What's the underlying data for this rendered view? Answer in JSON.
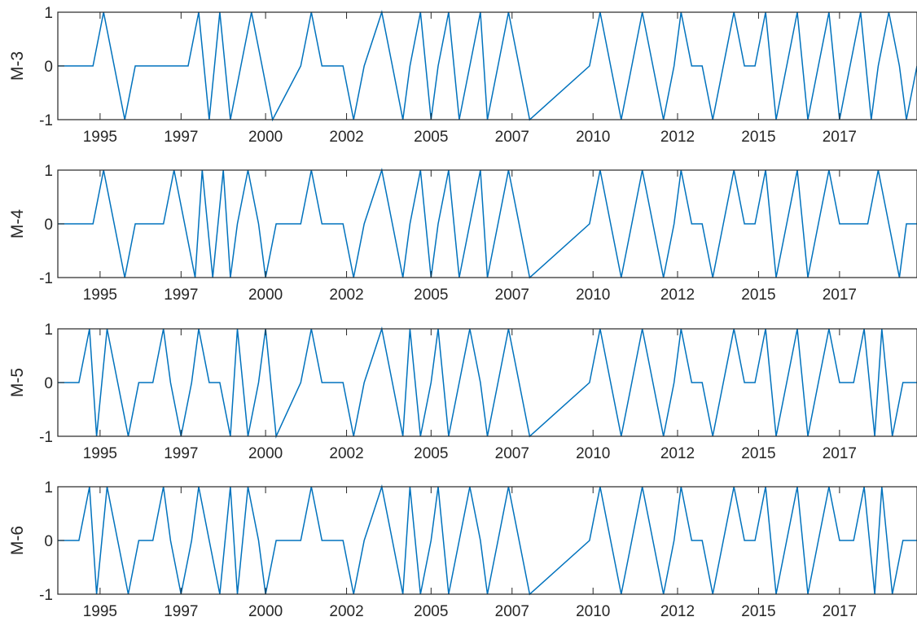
{
  "chart_data": [
    {
      "type": "line",
      "ylabel": "M-3",
      "ylim": [
        -1,
        1
      ],
      "yticks": [
        "-1",
        "0",
        "1"
      ],
      "xlim": [
        1994.0,
        2018.4
      ],
      "xtick_values": [
        1995.2,
        1997.5,
        1999.9,
        2002.2,
        2004.6,
        2006.9,
        2009.2,
        2011.6,
        2013.9,
        2016.2
      ],
      "xtick_labels": [
        "1995",
        "1997",
        "2000",
        "2002",
        "2005",
        "2007",
        "2010",
        "2012",
        "2015",
        "2017"
      ],
      "grid": false,
      "series": [
        {
          "color": "#0072bd",
          "x": [
            1994.0,
            1995.0,
            1995.3,
            1995.6,
            1995.9,
            1996.2,
            1997.7,
            1998.0,
            1998.3,
            1998.6,
            1998.9,
            1999.2,
            1999.5,
            1999.8,
            2000.1,
            2000.9,
            2001.2,
            2001.5,
            2002.1,
            2002.4,
            2002.7,
            2003.2,
            2003.5,
            2003.8,
            2004.0,
            2004.3,
            2004.6,
            2004.8,
            2005.1,
            2005.4,
            2005.7,
            2006.0,
            2006.2,
            2006.5,
            2006.8,
            2007.1,
            2007.4,
            2009.1,
            2009.4,
            2009.7,
            2010.0,
            2010.3,
            2010.6,
            2010.9,
            2011.2,
            2011.5,
            2011.7,
            2012.0,
            2012.3,
            2012.6,
            2012.9,
            2013.2,
            2013.5,
            2013.8,
            2014.1,
            2014.4,
            2014.7,
            2015.0,
            2015.3,
            2015.6,
            2015.9,
            2016.2,
            2016.5,
            2016.8,
            2017.1,
            2017.3,
            2017.6,
            2017.9,
            2018.1,
            2018.4
          ],
          "y": [
            0,
            0,
            1,
            0,
            -1,
            0,
            0,
            1,
            -1,
            1,
            -1,
            0,
            1,
            0,
            -1,
            0,
            1,
            0,
            0,
            -1,
            0,
            1,
            0,
            -1,
            0,
            1,
            -1,
            0,
            1,
            -1,
            0,
            1,
            -1,
            0,
            1,
            0,
            -1,
            0,
            1,
            0,
            -1,
            0,
            1,
            0,
            -1,
            0,
            1,
            0,
            0,
            -1,
            0,
            1,
            0,
            0,
            1,
            -1,
            0,
            1,
            -1,
            0,
            1,
            -1,
            0,
            1,
            -1,
            0,
            1,
            0,
            -1,
            0
          ]
        }
      ]
    },
    {
      "type": "line",
      "ylabel": "M-4",
      "ylim": [
        -1,
        1
      ],
      "yticks": [
        "-1",
        "0",
        "1"
      ],
      "xlim": [
        1994.0,
        2018.4
      ],
      "xtick_values": [
        1995.2,
        1997.5,
        1999.9,
        2002.2,
        2004.6,
        2006.9,
        2009.2,
        2011.6,
        2013.9,
        2016.2
      ],
      "xtick_labels": [
        "1995",
        "1997",
        "2000",
        "2002",
        "2005",
        "2007",
        "2010",
        "2012",
        "2015",
        "2017"
      ],
      "grid": false,
      "series": [
        {
          "color": "#0072bd",
          "x": [
            1994.0,
            1995.0,
            1995.3,
            1995.6,
            1995.9,
            1996.2,
            1997.0,
            1997.3,
            1997.6,
            1997.9,
            1998.1,
            1998.4,
            1998.7,
            1998.9,
            1999.1,
            1999.4,
            1999.7,
            1999.9,
            2000.2,
            2000.9,
            2001.2,
            2001.5,
            2002.1,
            2002.4,
            2002.7,
            2003.2,
            2003.5,
            2003.8,
            2004.0,
            2004.3,
            2004.6,
            2004.8,
            2005.1,
            2005.4,
            2005.7,
            2006.0,
            2006.2,
            2006.5,
            2006.8,
            2007.1,
            2007.4,
            2009.1,
            2009.4,
            2009.7,
            2010.0,
            2010.3,
            2010.6,
            2010.9,
            2011.2,
            2011.5,
            2011.7,
            2012.0,
            2012.3,
            2012.6,
            2012.9,
            2013.2,
            2013.5,
            2013.8,
            2014.1,
            2014.4,
            2014.7,
            2015.0,
            2015.3,
            2015.6,
            2015.9,
            2016.2,
            2017.0,
            2017.3,
            2017.6,
            2017.9,
            2018.1,
            2018.4
          ],
          "y": [
            0,
            0,
            1,
            0,
            -1,
            0,
            0,
            1,
            0,
            -1,
            1,
            -1,
            1,
            -1,
            0,
            1,
            0,
            -1,
            0,
            0,
            1,
            0,
            0,
            -1,
            0,
            1,
            0,
            -1,
            0,
            1,
            -1,
            0,
            1,
            -1,
            0,
            1,
            -1,
            0,
            1,
            0,
            -1,
            0,
            1,
            0,
            -1,
            0,
            1,
            0,
            -1,
            0,
            1,
            0,
            0,
            -1,
            0,
            1,
            0,
            0,
            1,
            -1,
            0,
            1,
            -1,
            0,
            1,
            0,
            0,
            1,
            0,
            -1,
            0,
            0
          ]
        }
      ]
    },
    {
      "type": "line",
      "ylabel": "M-5",
      "ylim": [
        -1,
        1
      ],
      "yticks": [
        "-1",
        "0",
        "1"
      ],
      "xlim": [
        1994.0,
        2018.4
      ],
      "xtick_values": [
        1995.2,
        1997.5,
        1999.9,
        2002.2,
        2004.6,
        2006.9,
        2009.2,
        2011.6,
        2013.9,
        2016.2
      ],
      "xtick_labels": [
        "1995",
        "1997",
        "2000",
        "2002",
        "2005",
        "2007",
        "2010",
        "2012",
        "2015",
        "2017"
      ],
      "grid": false,
      "series": [
        {
          "color": "#0072bd",
          "x": [
            1994.0,
            1994.6,
            1994.9,
            1995.1,
            1995.4,
            1995.7,
            1996.0,
            1996.3,
            1996.7,
            1997.0,
            1997.2,
            1997.5,
            1997.8,
            1998.0,
            1998.3,
            1998.6,
            1998.9,
            1999.1,
            1999.4,
            1999.7,
            1999.9,
            2000.2,
            2000.9,
            2001.2,
            2001.5,
            2002.1,
            2002.4,
            2002.7,
            2003.2,
            2003.5,
            2003.8,
            2004.0,
            2004.3,
            2004.6,
            2004.8,
            2005.1,
            2005.4,
            2005.7,
            2006.0,
            2006.2,
            2006.5,
            2006.8,
            2007.1,
            2007.4,
            2009.1,
            2009.4,
            2009.7,
            2010.0,
            2010.3,
            2010.6,
            2010.9,
            2011.2,
            2011.5,
            2011.7,
            2012.0,
            2012.3,
            2012.6,
            2012.9,
            2013.2,
            2013.5,
            2013.8,
            2014.1,
            2014.4,
            2014.7,
            2015.0,
            2015.3,
            2015.6,
            2015.9,
            2016.2,
            2016.6,
            2016.9,
            2017.2,
            2017.4,
            2017.7,
            2018.0,
            2018.4
          ],
          "y": [
            0,
            0,
            1,
            -1,
            1,
            0,
            -1,
            0,
            0,
            1,
            0,
            -1,
            0,
            1,
            0,
            0,
            -1,
            1,
            -1,
            0,
            1,
            -1,
            0,
            1,
            0,
            0,
            -1,
            0,
            1,
            0,
            -1,
            1,
            -1,
            0,
            1,
            -1,
            0,
            1,
            0,
            -1,
            0,
            1,
            0,
            -1,
            0,
            1,
            0,
            -1,
            0,
            1,
            0,
            -1,
            0,
            1,
            0,
            0,
            -1,
            0,
            1,
            0,
            0,
            1,
            -1,
            0,
            1,
            -1,
            0,
            1,
            0,
            0,
            1,
            -1,
            1,
            -1,
            0,
            0
          ]
        }
      ]
    },
    {
      "type": "line",
      "ylabel": "M-6",
      "ylim": [
        -1,
        1
      ],
      "yticks": [
        "-1",
        "0",
        "1"
      ],
      "xlim": [
        1994.0,
        2018.4
      ],
      "xtick_values": [
        1995.2,
        1997.5,
        1999.9,
        2002.2,
        2004.6,
        2006.9,
        2009.2,
        2011.6,
        2013.9,
        2016.2
      ],
      "xtick_labels": [
        "1995",
        "1997",
        "2000",
        "2002",
        "2005",
        "2007",
        "2010",
        "2012",
        "2015",
        "2017"
      ],
      "grid": false,
      "series": [
        {
          "color": "#0072bd",
          "x": [
            1994.0,
            1994.6,
            1994.9,
            1995.1,
            1995.4,
            1995.7,
            1996.0,
            1996.3,
            1996.7,
            1997.0,
            1997.2,
            1997.5,
            1997.8,
            1998.0,
            1998.3,
            1998.6,
            1998.9,
            1999.1,
            1999.4,
            1999.7,
            1999.9,
            2000.2,
            2000.9,
            2001.2,
            2001.5,
            2002.1,
            2002.4,
            2002.7,
            2003.2,
            2003.5,
            2003.8,
            2004.0,
            2004.3,
            2004.6,
            2004.8,
            2005.1,
            2005.4,
            2005.7,
            2006.0,
            2006.2,
            2006.5,
            2006.8,
            2007.1,
            2007.4,
            2009.1,
            2009.4,
            2009.7,
            2010.0,
            2010.3,
            2010.6,
            2010.9,
            2011.2,
            2011.5,
            2011.7,
            2012.0,
            2012.3,
            2012.6,
            2012.9,
            2013.2,
            2013.5,
            2013.8,
            2014.1,
            2014.4,
            2014.7,
            2015.0,
            2015.3,
            2015.6,
            2015.9,
            2016.2,
            2016.6,
            2016.9,
            2017.2,
            2017.4,
            2017.7,
            2018.0,
            2018.4
          ],
          "y": [
            0,
            0,
            1,
            -1,
            1,
            0,
            -1,
            0,
            0,
            1,
            0,
            -1,
            0,
            1,
            0,
            -1,
            1,
            -1,
            1,
            0,
            -1,
            0,
            0,
            1,
            0,
            0,
            -1,
            0,
            1,
            0,
            -1,
            1,
            -1,
            0,
            1,
            -1,
            0,
            1,
            0,
            -1,
            0,
            1,
            0,
            -1,
            0,
            1,
            0,
            -1,
            0,
            1,
            0,
            -1,
            0,
            1,
            0,
            0,
            -1,
            0,
            1,
            0,
            0,
            1,
            -1,
            0,
            1,
            -1,
            0,
            1,
            0,
            0,
            1,
            -1,
            1,
            -1,
            0,
            0
          ]
        }
      ]
    }
  ]
}
